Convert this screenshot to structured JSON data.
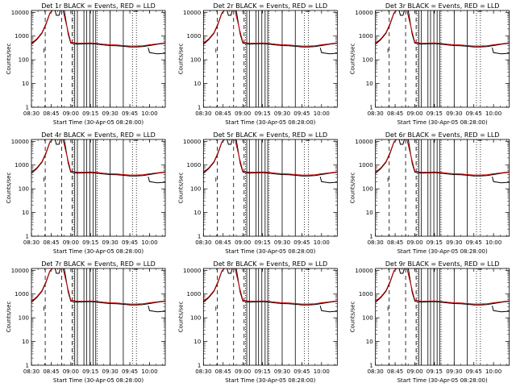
{
  "chart_data": [
    {
      "type": "line",
      "title": "Det 1r BLACK = Events, RED = LLD",
      "xlabel": "Start Time (30-Apr-05 08:28:00)",
      "ylabel": "Counts/sec"
    },
    {
      "type": "line",
      "title": "Det 2r BLACK = Events, RED = LLD",
      "xlabel": "Start Time (30-Apr-05 08:28:00)",
      "ylabel": "Counts/sec"
    },
    {
      "type": "line",
      "title": "Det 3r BLACK = Events, RED = LLD",
      "xlabel": "Start Time (30-Apr-05 08:28:00)",
      "ylabel": "Counts/sec"
    },
    {
      "type": "line",
      "title": "Det 4r BLACK = Events, RED = LLD",
      "xlabel": "Start Time (30-Apr-05 08:28:00)",
      "ylabel": "Counts/sec"
    },
    {
      "type": "line",
      "title": "Det 5r BLACK = Events, RED = LLD",
      "xlabel": "Start Time (30-Apr-05 08:28:00)",
      "ylabel": "Counts/sec"
    },
    {
      "type": "line",
      "title": "Det 6r BLACK = Events, RED = LLD",
      "xlabel": "Start Time (30-Apr-05 08:28:00)",
      "ylabel": "Counts/sec"
    },
    {
      "type": "line",
      "title": "Det 7r BLACK = Events, RED = LLD",
      "xlabel": "Start Time (30-Apr-05 08:28:00)",
      "ylabel": "Counts/sec"
    },
    {
      "type": "line",
      "title": "Det 8r BLACK = Events, RED = LLD",
      "xlabel": "Start Time (30-Apr-05 08:28:00)",
      "ylabel": "Counts/sec"
    },
    {
      "type": "line",
      "title": "Det 9r BLACK = Events, RED = LLD",
      "xlabel": "Start Time (30-Apr-05 08:28:00)",
      "ylabel": "Counts/sec"
    }
  ],
  "shared": {
    "x_ticks": [
      "08:30",
      "08:45",
      "09:00",
      "09:15",
      "09:30",
      "09:45",
      "10:00"
    ],
    "x_tick_minutes": [
      510,
      525,
      540,
      555,
      570,
      585,
      600
    ],
    "xlim_minutes": [
      510,
      612
    ],
    "y_ticks": [
      "1",
      "10",
      "100",
      "1000",
      "10000"
    ],
    "y_tick_values": [
      1,
      10,
      100,
      1000,
      10000
    ],
    "ylim": [
      1,
      12000
    ],
    "yscale": "log",
    "series_colors": {
      "events": "#000000",
      "lld": "#cc0000"
    },
    "events_curve": [
      [
        510,
        450
      ],
      [
        514,
        700
      ],
      [
        518,
        1300
      ],
      [
        521,
        3000
      ],
      [
        524,
        9000
      ],
      [
        526,
        14000
      ],
      [
        535,
        14000
      ],
      [
        538,
        1200
      ],
      [
        540,
        500
      ],
      [
        545,
        460
      ],
      [
        550,
        470
      ],
      [
        555,
        480
      ],
      [
        560,
        460
      ],
      [
        565,
        420
      ],
      [
        570,
        400
      ],
      [
        575,
        390
      ],
      [
        580,
        370
      ],
      [
        585,
        350
      ],
      [
        590,
        350
      ],
      [
        595,
        360
      ],
      [
        600,
        400
      ],
      [
        606,
        450
      ],
      [
        612,
        500
      ]
    ],
    "lld_curve": [
      [
        510,
        500
      ],
      [
        514,
        760
      ],
      [
        518,
        1400
      ],
      [
        521,
        3300
      ],
      [
        524,
        9500
      ],
      [
        526,
        14000
      ],
      [
        534,
        14000
      ],
      [
        538,
        1500
      ],
      [
        540,
        560
      ],
      [
        545,
        500
      ],
      [
        550,
        500
      ],
      [
        555,
        510
      ],
      [
        560,
        490
      ],
      [
        565,
        450
      ],
      [
        570,
        430
      ],
      [
        575,
        420
      ],
      [
        580,
        400
      ],
      [
        585,
        380
      ],
      [
        590,
        380
      ],
      [
        595,
        390
      ],
      [
        600,
        430
      ],
      [
        606,
        470
      ],
      [
        612,
        520
      ]
    ],
    "tail_drop_curve": [
      [
        599,
        320
      ],
      [
        600,
        200
      ],
      [
        606,
        180
      ],
      [
        612,
        190
      ]
    ],
    "notch_curve": [
      [
        528,
        14000
      ],
      [
        529,
        7500
      ],
      [
        531,
        7500
      ],
      [
        532,
        14000
      ]
    ],
    "dashed_lines": [
      520.5,
      533,
      541
    ],
    "solid_lines": [
      543,
      545,
      550,
      552,
      554.5,
      557,
      559,
      570,
      580
    ],
    "dotted_lines": [
      542,
      560,
      587,
      590
    ],
    "left_dashed_segment": {
      "x": 519.5,
      "y_range": [
        300,
        200
      ]
    }
  }
}
